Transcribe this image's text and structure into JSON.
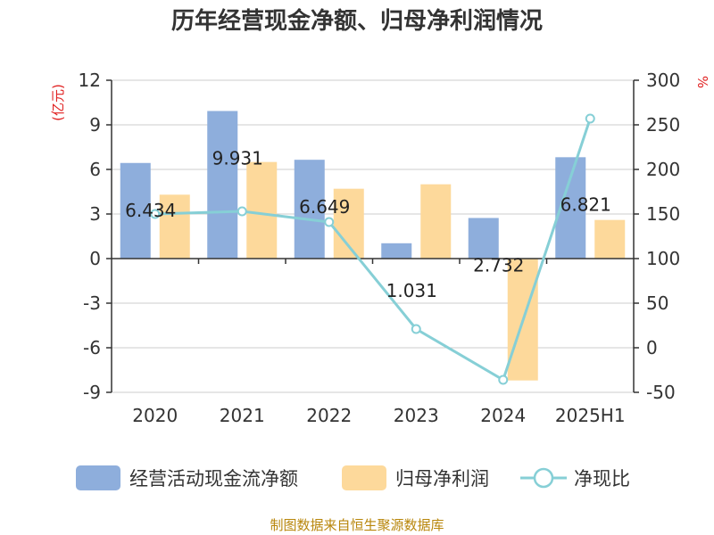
{
  "chart_data": {
    "type": "bar",
    "title": "历年经营现金净额、归母净利润情况",
    "categories": [
      "2020",
      "2021",
      "2022",
      "2023",
      "2024",
      "2025H1"
    ],
    "left_axis": {
      "unit": "(亿元)",
      "min": -9,
      "max": 12,
      "ticks": [
        12,
        9,
        6,
        3,
        0,
        -3,
        -6,
        -9
      ]
    },
    "right_axis": {
      "unit": "%",
      "min": -50,
      "max": 300,
      "ticks": [
        300,
        250,
        200,
        150,
        100,
        50,
        0,
        -50
      ]
    },
    "series": [
      {
        "name": "经营活动现金流净额",
        "type": "bar",
        "axis": "left",
        "color": "#8eaedc",
        "values": [
          6.434,
          9.931,
          6.649,
          1.031,
          2.732,
          6.821
        ],
        "labels": [
          "6.434",
          "9.931",
          "6.649",
          "1.031",
          "2.732",
          "6.821"
        ]
      },
      {
        "name": "归母净利润",
        "type": "bar",
        "axis": "left",
        "color": "#fdd99b",
        "values": [
          4.3,
          6.5,
          4.7,
          5.0,
          -8.2,
          2.6
        ]
      },
      {
        "name": "净现比",
        "type": "line",
        "axis": "right",
        "color": "#86cfd6",
        "values": [
          150,
          153,
          141,
          21,
          -36,
          257
        ]
      }
    ],
    "legend_position": "bottom",
    "grid": true
  },
  "source_text": "制图数据来自恒生聚源数据库"
}
